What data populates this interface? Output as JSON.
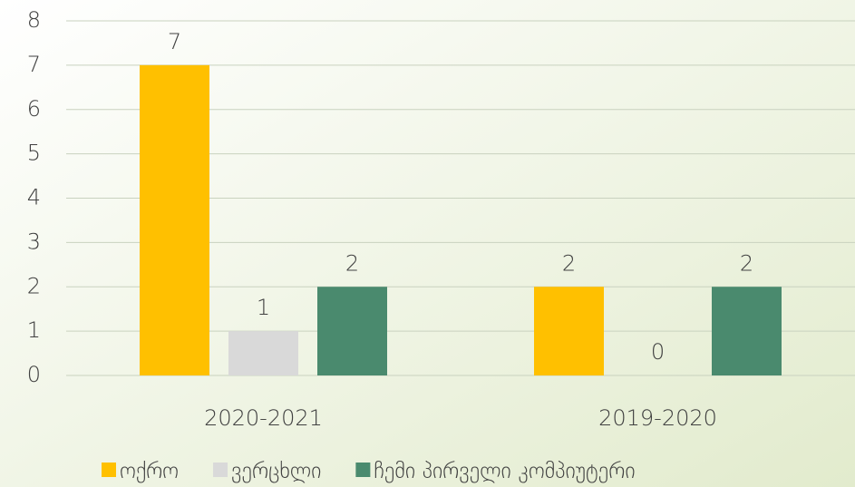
{
  "chart_data": {
    "type": "bar",
    "categories": [
      "2020-2021",
      "2019-2020"
    ],
    "series": [
      {
        "name": "ოქრო",
        "color": "#ffc000",
        "values": [
          7,
          2
        ]
      },
      {
        "name": "ვერცხლი",
        "color": "#d9d9d9",
        "values": [
          1,
          0
        ]
      },
      {
        "name": "ჩემი პირველი კომპიუტერი",
        "color": "#4a8a6e",
        "values": [
          2,
          2
        ]
      }
    ],
    "ylim": [
      0,
      8
    ],
    "yticks": [
      0,
      1,
      2,
      3,
      4,
      5,
      6,
      7,
      8
    ],
    "grid": true,
    "legend": "bottom"
  }
}
